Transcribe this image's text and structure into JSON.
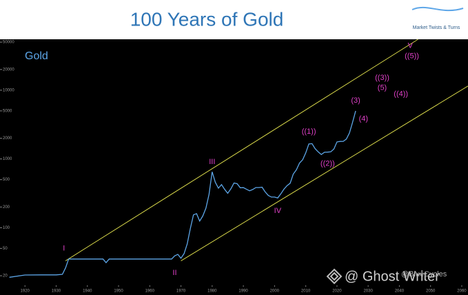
{
  "chart_data": {
    "type": "line",
    "title": "100 Years of Gold",
    "label": "Gold",
    "logo": "Market Twists & Turns",
    "watermarks": [
      "@ Ghost Writer",
      "@BlueCycles"
    ],
    "log_scale": true,
    "xlim": [
      1912,
      2062
    ],
    "xticks": [
      1920,
      1930,
      1940,
      1950,
      1960,
      1970,
      1980,
      1990,
      2000,
      2010,
      2020,
      2030,
      2040,
      2050,
      2060
    ],
    "ylim": [
      10.5,
      55000
    ],
    "yticks": [
      20,
      50,
      100,
      200,
      500,
      1000,
      2000,
      5000,
      10000,
      20000,
      50000
    ],
    "x": [
      1915,
      1920,
      1925,
      1930,
      1932,
      1933,
      1934,
      1935,
      1945,
      1946,
      1947,
      1950,
      1960,
      1967,
      1968,
      1969,
      1970,
      1971,
      1972,
      1973,
      1974,
      1975,
      1976,
      1977,
      1978,
      1979,
      1980,
      1981,
      1982,
      1983,
      1984,
      1985,
      1986,
      1987,
      1988,
      1989,
      1990,
      1991,
      1992,
      1993,
      1994,
      1995,
      1996,
      1997,
      1998,
      1999,
      2000,
      2001,
      2002,
      2003,
      2004,
      2005,
      2006,
      2007,
      2008,
      2009,
      2010,
      2011,
      2012,
      2013,
      2014,
      2015,
      2016,
      2017,
      2018,
      2019,
      2020,
      2021,
      2022,
      2023,
      2024,
      2025,
      2026
    ],
    "series": [
      {
        "color": "#5da6e8",
        "values": [
          19,
          20.5,
          20.6,
          20.6,
          21,
          26,
          35,
          35,
          35,
          31,
          35,
          35,
          35,
          35,
          39,
          41,
          36,
          42,
          58,
          97,
          154,
          160,
          125,
          148,
          193,
          306,
          650,
          460,
          376,
          424,
          361,
          317,
          368,
          447,
          437,
          381,
          383,
          362,
          344,
          360,
          384,
          384,
          388,
          331,
          294,
          279,
          279,
          271,
          310,
          363,
          409,
          444,
          603,
          695,
          872,
          972,
          1225,
          1650,
          1669,
          1411,
          1266,
          1160,
          1251,
          1257,
          1268,
          1393,
          1770,
          1799,
          1800,
          1943,
          2386,
          3400,
          5000
        ]
      }
    ],
    "channel_lines": [
      {
        "color": "#d8d84a",
        "x": [
          1933,
          2046
        ],
        "values": [
          33,
          55000
        ]
      },
      {
        "color": "#d8d84a",
        "x": [
          1970,
          2062
        ],
        "values": [
          33,
          11500
        ]
      }
    ],
    "annotations": [
      {
        "text": "I",
        "x": 1932.5,
        "y": 50
      },
      {
        "text": "II",
        "x": 1968,
        "y": 22
      },
      {
        "text": "III",
        "x": 1980,
        "y": 900
      },
      {
        "text": "IV",
        "x": 2001,
        "y": 175
      },
      {
        "text": "((1))",
        "x": 2011,
        "y": 2500
      },
      {
        "text": "((2))",
        "x": 2017,
        "y": 850
      },
      {
        "text": "(3)",
        "x": 2026,
        "y": 7000
      },
      {
        "text": "(4)",
        "x": 2028.5,
        "y": 3800
      },
      {
        "text": "((3))",
        "x": 2034.5,
        "y": 15000
      },
      {
        "text": "(5)",
        "x": 2034.5,
        "y": 10800
      },
      {
        "text": "((4))",
        "x": 2040.5,
        "y": 8800
      },
      {
        "text": "((5))",
        "x": 2044,
        "y": 31000
      },
      {
        "text": "V",
        "x": 2043.5,
        "y": 44000
      }
    ],
    "annotation_color": "#e040c8"
  }
}
